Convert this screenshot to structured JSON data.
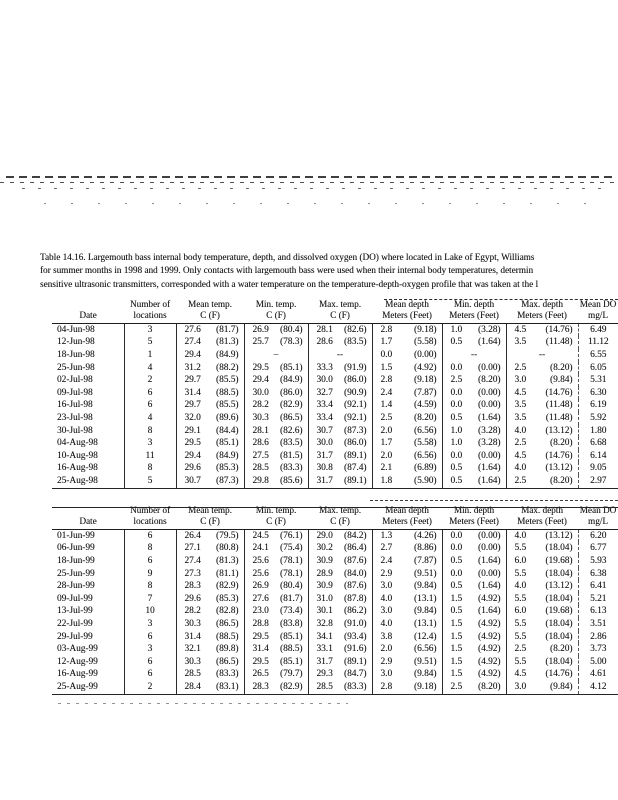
{
  "page": {
    "background": "#ffffff",
    "ink_color": "#161616"
  },
  "caption": {
    "line1": "Table 14.16.  Largemouth bass internal body temperature, depth, and dissolved oxygen (DO) where located in Lake of Egypt, Williams",
    "line2": "for summer months in 1998 and 1999.  Only contacts with largemouth bass were used when their internal body temperatures, determin",
    "line3": "sensitive ultrasonic transmitters, corresponded with a water temperature on the temperature-depth-oxygen profile that was taken at the l"
  },
  "tables": [
    {
      "year": "1998",
      "columns": [
        {
          "line1": "",
          "line2": "Date"
        },
        {
          "line1": "Number of",
          "line2": "locations"
        },
        {
          "line1": "Mean temp.",
          "line2": "C (F)"
        },
        {
          "line1": "Min. temp.",
          "line2": "C (F)"
        },
        {
          "line1": "Max. temp.",
          "line2": "C (F)"
        },
        {
          "line1": "Mean depth",
          "line2": "Meters (Feet)"
        },
        {
          "line1": "Min. depth",
          "line2": "Meters (Feet)"
        },
        {
          "line1": "Max. depth",
          "line2": "Meters (Feet)"
        },
        {
          "line1": "Mean DO",
          "line2": "mg/L"
        }
      ],
      "rows": [
        [
          "04-Jun-98",
          "3",
          "27.6 (81.7)",
          "26.9 (80.4)",
          "28.1 (82.6)",
          "2.8 (9.18)",
          "1.0 (3.28)",
          "4.5 (14.76)",
          "6.49"
        ],
        [
          "12-Jun-98",
          "5",
          "27.4 (81.3)",
          "25.7 (78.3)",
          "28.6 (83.5)",
          "1.7 (5.58)",
          "0.5 (1.64)",
          "3.5 (11.48)",
          "11.12"
        ],
        [
          "18-Jun-98",
          "1",
          "29.4 (84.9)",
          "–",
          "--",
          "0.0 (0.00)",
          "--",
          "--",
          "6.55"
        ],
        [
          "25-Jun-98",
          "4",
          "31.2 (88.2)",
          "29.5 (85.1)",
          "33.3 (91.9)",
          "1.5 (4.92)",
          "0.0 (0.00)",
          "2.5 (8.20)",
          "6.05"
        ],
        [
          "02-Jul-98",
          "2",
          "29.7 (85.5)",
          "29.4 (84.9)",
          "30.0 (86.0)",
          "2.8 (9.18)",
          "2.5 (8.20)",
          "3.0 (9.84)",
          "5.31"
        ],
        [
          "09-Jul-98",
          "6",
          "31.4 (88.5)",
          "30.0 (86.0)",
          "32.7 (90.9)",
          "2.4 (7.87)",
          "0.0 (0.00)",
          "4.5 (14.76)",
          "6.30"
        ],
        [
          "16-Jul-98",
          "6",
          "29.7 (85.5)",
          "28.2 (82.9)",
          "33.4 (92.1)",
          "1.4 (4.59)",
          "0.0 (0.00)",
          "3.5 (11.48)",
          "6.19"
        ],
        [
          "23-Jul-98",
          "4",
          "32.0 (89.6)",
          "30.3 (86.5)",
          "33.4 (92.1)",
          "2.5 (8.20)",
          "0.5 (1.64)",
          "3.5 (11.48)",
          "5.92"
        ],
        [
          "30-Jul-98",
          "8",
          "29.1 (84.4)",
          "28.1 (82.6)",
          "30.7 (87.3)",
          "2.0 (6.56)",
          "1.0 (3.28)",
          "4.0 (13.12)",
          "1.80"
        ],
        [
          "04-Aug-98",
          "3",
          "29.5 (85.1)",
          "28.6 (83.5)",
          "30.0 (86.0)",
          "1.7 (5.58)",
          "1.0 (3.28)",
          "2.5 (8.20)",
          "6.68"
        ],
        [
          "10-Aug-98",
          "11",
          "29.4 (84.9)",
          "27.5 (81.5)",
          "31.7 (89.1)",
          "2.0 (6.56)",
          "0.0 (0.00)",
          "4.5 (14.76)",
          "6.14"
        ],
        [
          "16-Aug-98",
          "8",
          "29.6 (85.3)",
          "28.5 (83.3)",
          "30.8 (87.4)",
          "2.1 (6.89)",
          "0.5 (1.64)",
          "4.0 (13.12)",
          "9.05"
        ],
        [
          "25-Aug-98",
          "5",
          "30.7 (87.3)",
          "29.8 (85.6)",
          "31.7 (89.1)",
          "1.8 (5.90)",
          "0.5 (1.64)",
          "2.5 (8.20)",
          "2.97"
        ]
      ]
    },
    {
      "year": "1999",
      "columns": [
        {
          "line1": "",
          "line2": "Date"
        },
        {
          "line1": "Number of",
          "line2": "locations"
        },
        {
          "line1": "Mean temp.",
          "line2": "C (F)"
        },
        {
          "line1": "Min. temp.",
          "line2": "C (F)"
        },
        {
          "line1": "Max. temp.",
          "line2": "C (F)"
        },
        {
          "line1": "Mean depth",
          "line2": "Meters (Feet)"
        },
        {
          "line1": "Min. depth",
          "line2": "Meters (Feet)"
        },
        {
          "line1": "Max. depth",
          "line2": "Meters (Feet)"
        },
        {
          "line1": "Mean DO",
          "line2": "mg/L"
        }
      ],
      "rows": [
        [
          "01-Jun-99",
          "6",
          "26.4 (79.5)",
          "24.5 (76.1)",
          "29.0 (84.2)",
          "1.3 (4.26)",
          "0.0 (0.00)",
          "4.0 (13.12)",
          "6.20"
        ],
        [
          "06-Jun-99",
          "8",
          "27.1 (80.8)",
          "24.1 (75.4)",
          "30.2 (86.4)",
          "2.7 (8.86)",
          "0.0 (0.00)",
          "5.5 (18.04)",
          "6.77"
        ],
        [
          "18-Jun-99",
          "6",
          "27.4 (81.3)",
          "25.6 (78.1)",
          "30.9 (87.6)",
          "2.4 (7.87)",
          "0.5 (1.64)",
          "6.0 (19.68)",
          "5.93"
        ],
        [
          "25-Jun-99",
          "9",
          "27.3 (81.1)",
          "25.6 (78.1)",
          "28.9 (84.0)",
          "2.9 (9.51)",
          "0.0 (0.00)",
          "5.5 (18.04)",
          "6.38"
        ],
        [
          "28-Jun-99",
          "8",
          "28.3 (82.9)",
          "26.9 (80.4)",
          "30.9 (87.6)",
          "3.0 (9.84)",
          "0.5 (1.64)",
          "4.0 (13.12)",
          "6.41"
        ],
        [
          "09-Jul-99",
          "7",
          "29.6 (85.3)",
          "27.6 (81.7)",
          "31.0 (87.8)",
          "4.0 (13.1)",
          "1.5 (4.92)",
          "5.5 (18.04)",
          "5.21"
        ],
        [
          "13-Jul-99",
          "10",
          "28.2 (82.8)",
          "23.0 (73.4)",
          "30.1 (86.2)",
          "3.0 (9.84)",
          "0.5 (1.64)",
          "6.0 (19.68)",
          "6.13"
        ],
        [
          "22-Jul-99",
          "3",
          "30.3 (86.5)",
          "28.8 (83.8)",
          "32.8 (91.0)",
          "4.0 (13.1)",
          "1.5 (4.92)",
          "5.5 (18.04)",
          "3.51"
        ],
        [
          "29-Jul-99",
          "6",
          "31.4 (88.5)",
          "29.5 (85.1)",
          "34.1 (93.4)",
          "3.8 (12.4)",
          "1.5 (4.92)",
          "5.5 (18.04)",
          "2.86"
        ],
        [
          "03-Aug-99",
          "3",
          "32.1 (89.8)",
          "31.4 (88.5)",
          "33.1 (91.6)",
          "2.0 (6.56)",
          "1.5 (4.92)",
          "2.5 (8.20)",
          "3.73"
        ],
        [
          "12-Aug-99",
          "6",
          "30.3 (86.5)",
          "29.5 (85.1)",
          "31.7 (89.1)",
          "2.9 (9.51)",
          "1.5 (4.92)",
          "5.5 (18.04)",
          "5.00"
        ],
        [
          "16-Aug-99",
          "6",
          "28.5 (83.3)",
          "26.5 (79.7)",
          "29.3 (84.7)",
          "3.0 (9.84)",
          "1.5 (4.92)",
          "4.5 (14.76)",
          "4.61"
        ],
        [
          "25-Aug-99",
          "2",
          "28.4 (83.1)",
          "28.3 (82.9)",
          "28.5 (83.3)",
          "2.8 (9.18)",
          "2.5 (8.20)",
          "3.0 (9.84)",
          "4.12"
        ]
      ]
    }
  ]
}
